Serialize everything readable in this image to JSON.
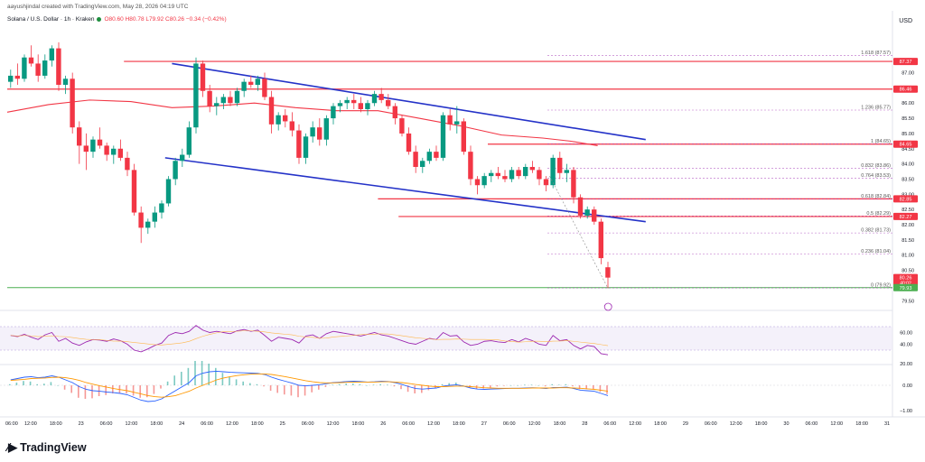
{
  "header": {
    "author_line": "aayushjindal created with TradingView.com, May 28, 2026 04:19 UTC",
    "symbol_line": "Solana / U.S. Dollar · 1h · Kraken",
    "ohlc": "O80.60 H80.78 L79.92 C80.26 −0.34 (−0.42%)",
    "currency": "USD"
  },
  "logo_text": "TradingView",
  "colors": {
    "up": "#089981",
    "down": "#f23645",
    "channel": "#2432c8",
    "ma": "#f23645",
    "fib": "#9c27b0",
    "rsi": "#9c27b0",
    "macd": "#2962ff",
    "signal": "#ff9800",
    "support": "#4caf50"
  },
  "chart_data": {
    "type": "candlestick",
    "timeframe": "1h",
    "price_axis": {
      "labels": [
        "87.00",
        "86.50",
        "86.00",
        "85.50",
        "85.00",
        "84.50",
        "84.00",
        "83.50",
        "83.00",
        "82.50",
        "82.00",
        "81.50",
        "81.00",
        "80.50",
        "79.50"
      ],
      "range": [
        79.3,
        88.5
      ]
    },
    "price_tags": [
      {
        "value": "87.37",
        "color": "#f23645"
      },
      {
        "value": "86.46",
        "color": "#f23645"
      },
      {
        "value": "84.65",
        "color": "#f23645"
      },
      {
        "value": "82.85",
        "color": "#f23645"
      },
      {
        "value": "82.27",
        "color": "#f23645"
      },
      {
        "value": "80.26",
        "sub": "40:02",
        "color": "#f23645"
      },
      {
        "value": "79.93",
        "color": "#4caf50"
      }
    ],
    "x_axis": {
      "labels": [
        "06:00",
        "12:00",
        "18:00",
        "23",
        "06:00",
        "12:00",
        "18:00",
        "24",
        "06:00",
        "12:00",
        "18:00",
        "25",
        "06:00",
        "12:00",
        "18:00",
        "26",
        "06:00",
        "12:00",
        "18:00",
        "27",
        "06:00",
        "12:00",
        "18:00",
        "28",
        "06:00",
        "12:00",
        "18:00",
        "29",
        "06:00",
        "12:00",
        "18:00",
        "30",
        "06:00",
        "12:00",
        "18:00",
        "31"
      ]
    },
    "candles": [
      [
        86.7,
        87.1,
        86.5,
        86.9
      ],
      [
        86.9,
        87.3,
        86.6,
        86.8
      ],
      [
        86.8,
        87.6,
        86.7,
        87.5
      ],
      [
        87.5,
        87.9,
        87.2,
        87.3
      ],
      [
        87.3,
        87.6,
        86.7,
        86.9
      ],
      [
        86.9,
        87.6,
        86.8,
        87.4
      ],
      [
        87.4,
        87.9,
        87.2,
        87.8
      ],
      [
        87.8,
        88.0,
        86.4,
        86.6
      ],
      [
        86.6,
        86.9,
        86.3,
        86.8
      ],
      [
        86.8,
        87.0,
        85.0,
        85.2
      ],
      [
        85.2,
        85.4,
        84.0,
        84.6
      ],
      [
        84.6,
        85.0,
        83.8,
        84.4
      ],
      [
        84.4,
        84.9,
        84.2,
        84.8
      ],
      [
        84.8,
        85.2,
        84.5,
        84.6
      ],
      [
        84.6,
        84.7,
        84.1,
        84.3
      ],
      [
        84.3,
        84.6,
        84.0,
        84.5
      ],
      [
        84.5,
        84.8,
        84.1,
        84.2
      ],
      [
        84.2,
        84.4,
        83.6,
        83.8
      ],
      [
        83.8,
        84.0,
        82.3,
        82.4
      ],
      [
        82.4,
        82.6,
        81.4,
        81.9
      ],
      [
        81.9,
        82.2,
        81.7,
        82.1
      ],
      [
        82.1,
        82.6,
        81.9,
        82.4
      ],
      [
        82.4,
        82.8,
        82.2,
        82.7
      ],
      [
        82.7,
        83.6,
        82.6,
        83.5
      ],
      [
        83.5,
        84.2,
        83.3,
        84.1
      ],
      [
        84.1,
        84.5,
        83.9,
        84.3
      ],
      [
        84.3,
        85.4,
        84.2,
        85.2
      ],
      [
        85.2,
        87.5,
        85.0,
        87.3
      ],
      [
        87.3,
        87.4,
        86.2,
        86.4
      ],
      [
        86.4,
        86.6,
        85.7,
        85.9
      ],
      [
        85.9,
        86.2,
        85.6,
        86.0
      ],
      [
        86.0,
        86.3,
        85.8,
        86.2
      ],
      [
        86.2,
        86.4,
        85.9,
        86.0
      ],
      [
        86.0,
        86.5,
        85.9,
        86.4
      ],
      [
        86.4,
        86.8,
        86.2,
        86.7
      ],
      [
        86.7,
        86.9,
        86.5,
        86.6
      ],
      [
        86.6,
        86.9,
        86.4,
        86.8
      ],
      [
        86.8,
        87.0,
        86.1,
        86.2
      ],
      [
        86.2,
        86.4,
        85.0,
        85.3
      ],
      [
        85.3,
        85.7,
        85.1,
        85.6
      ],
      [
        85.6,
        85.8,
        85.2,
        85.4
      ],
      [
        85.4,
        85.7,
        84.9,
        85.1
      ],
      [
        85.1,
        85.3,
        84.0,
        84.2
      ],
      [
        84.2,
        85.0,
        84.0,
        84.9
      ],
      [
        84.9,
        85.4,
        84.7,
        85.2
      ],
      [
        85.2,
        85.5,
        84.6,
        84.8
      ],
      [
        84.8,
        85.6,
        84.6,
        85.5
      ],
      [
        85.5,
        86.0,
        85.3,
        85.9
      ],
      [
        85.9,
        86.1,
        85.7,
        86.0
      ],
      [
        86.0,
        86.2,
        85.8,
        86.1
      ],
      [
        86.1,
        86.3,
        85.8,
        86.0
      ],
      [
        86.0,
        86.2,
        85.7,
        85.8
      ],
      [
        85.8,
        86.1,
        85.6,
        86.0
      ],
      [
        86.0,
        86.4,
        85.9,
        86.3
      ],
      [
        86.3,
        86.5,
        86.0,
        86.1
      ],
      [
        86.1,
        86.3,
        85.8,
        85.9
      ],
      [
        85.9,
        86.0,
        85.3,
        85.5
      ],
      [
        85.5,
        85.6,
        84.9,
        85.0
      ],
      [
        85.0,
        85.2,
        84.3,
        84.4
      ],
      [
        84.4,
        84.6,
        83.7,
        83.9
      ],
      [
        83.9,
        84.2,
        83.7,
        84.1
      ],
      [
        84.1,
        84.5,
        84.0,
        84.4
      ],
      [
        84.4,
        84.6,
        84.1,
        84.2
      ],
      [
        84.2,
        85.7,
        84.1,
        85.6
      ],
      [
        85.6,
        85.8,
        85.1,
        85.3
      ],
      [
        85.3,
        85.9,
        85.0,
        85.4
      ],
      [
        85.4,
        85.5,
        84.3,
        84.4
      ],
      [
        84.4,
        84.6,
        83.3,
        83.5
      ],
      [
        83.5,
        83.6,
        83.0,
        83.3
      ],
      [
        83.3,
        83.7,
        83.2,
        83.6
      ],
      [
        83.6,
        83.8,
        83.4,
        83.7
      ],
      [
        83.7,
        83.9,
        83.5,
        83.6
      ],
      [
        83.6,
        83.8,
        83.4,
        83.5
      ],
      [
        83.5,
        83.9,
        83.4,
        83.8
      ],
      [
        83.8,
        83.9,
        83.5,
        83.6
      ],
      [
        83.6,
        84.0,
        83.5,
        83.9
      ],
      [
        83.9,
        84.1,
        83.7,
        83.8
      ],
      [
        83.8,
        83.9,
        83.3,
        83.5
      ],
      [
        83.5,
        83.6,
        83.1,
        83.3
      ],
      [
        83.3,
        84.3,
        83.2,
        84.2
      ],
      [
        84.2,
        84.4,
        83.5,
        83.7
      ],
      [
        83.7,
        84.0,
        83.4,
        83.8
      ],
      [
        83.8,
        83.9,
        82.7,
        82.9
      ],
      [
        82.9,
        83.0,
        82.2,
        82.3
      ],
      [
        82.3,
        82.6,
        82.2,
        82.5
      ],
      [
        82.5,
        82.6,
        82.0,
        82.1
      ],
      [
        82.1,
        82.2,
        80.7,
        80.9
      ],
      [
        80.6,
        80.78,
        79.92,
        80.26
      ]
    ],
    "moving_average": [
      [
        0,
        85.7
      ],
      [
        6,
        85.95
      ],
      [
        12,
        86.1
      ],
      [
        18,
        86.05
      ],
      [
        24,
        85.85
      ],
      [
        30,
        85.9
      ],
      [
        36,
        86.0
      ],
      [
        42,
        85.85
      ],
      [
        48,
        85.75
      ],
      [
        54,
        85.75
      ],
      [
        60,
        85.5
      ],
      [
        66,
        85.25
      ],
      [
        72,
        84.95
      ],
      [
        78,
        84.85
      ],
      [
        82,
        84.75
      ],
      [
        86,
        84.6
      ]
    ],
    "channel_upper": {
      "from": [
        24,
        87.3
      ],
      "to": [
        93,
        84.8
      ]
    },
    "channel_lower": {
      "from": [
        23,
        84.2
      ],
      "to": [
        93,
        82.1
      ]
    },
    "horizontal_levels": [
      {
        "value": 87.37,
        "from_bar": 17
      },
      {
        "value": 86.46,
        "from_bar": 0
      },
      {
        "value": 84.65,
        "from_bar": 70
      },
      {
        "value": 82.85,
        "from_bar": 54
      },
      {
        "value": 82.27,
        "from_bar": 57
      },
      {
        "value": 79.93,
        "from_bar": 0,
        "color": "#4caf50"
      }
    ],
    "fib_levels": [
      {
        "ratio": "1.618",
        "value": 87.57,
        "label": "1.618 (87.57)"
      },
      {
        "ratio": "1.236",
        "value": 85.77,
        "label": "1.236 (85.77)"
      },
      {
        "ratio": "1",
        "value": 84.65,
        "label": "1 (84.65)"
      },
      {
        "ratio": "0.832",
        "value": 83.86,
        "label": "0.832 (83.86)"
      },
      {
        "ratio": "0.764",
        "value": 83.53,
        "label": "0.764 (83.53)"
      },
      {
        "ratio": "0.618",
        "value": 82.84,
        "label": "0.618 (82.84)"
      },
      {
        "ratio": "0.5",
        "value": 82.29,
        "label": "0.5 (82.29)"
      },
      {
        "ratio": "0.382",
        "value": 81.73,
        "label": "0.382 (81.73)"
      },
      {
        "ratio": "0.236",
        "value": 81.04,
        "label": "0.236 (81.04)"
      },
      {
        "ratio": "0",
        "value": 79.92,
        "label": "0 (79.92)"
      }
    ],
    "rsi": {
      "axis_labels": [
        "60.00",
        "40.00"
      ],
      "values": [
        55,
        53,
        57,
        52,
        48,
        56,
        60,
        45,
        50,
        42,
        38,
        44,
        48,
        47,
        45,
        49,
        46,
        40,
        30,
        27,
        32,
        38,
        42,
        55,
        60,
        58,
        62,
        72,
        64,
        60,
        62,
        60,
        58,
        63,
        65,
        62,
        64,
        55,
        45,
        52,
        50,
        48,
        42,
        54,
        56,
        50,
        58,
        62,
        60,
        58,
        56,
        54,
        57,
        60,
        56,
        54,
        50,
        46,
        42,
        40,
        45,
        50,
        48,
        60,
        54,
        55,
        44,
        38,
        40,
        45,
        46,
        44,
        43,
        48,
        44,
        50,
        46,
        40,
        38,
        55,
        46,
        48,
        38,
        32,
        38,
        36,
        24,
        22
      ]
    },
    "macd": {
      "axis_labels": [
        "20.00",
        "0.00",
        "−1.00"
      ],
      "macd": [
        0.2,
        0.25,
        0.3,
        0.32,
        0.28,
        0.3,
        0.35,
        0.3,
        0.2,
        0.1,
        -0.05,
        -0.15,
        -0.2,
        -0.22,
        -0.25,
        -0.27,
        -0.3,
        -0.35,
        -0.45,
        -0.55,
        -0.6,
        -0.58,
        -0.5,
        -0.35,
        -0.2,
        -0.05,
        0.1,
        0.35,
        0.45,
        0.5,
        0.52,
        0.5,
        0.48,
        0.47,
        0.46,
        0.45,
        0.44,
        0.4,
        0.3,
        0.22,
        0.15,
        0.08,
        0.0,
        -0.02,
        0.0,
        0.02,
        0.06,
        0.1,
        0.12,
        0.14,
        0.15,
        0.14,
        0.12,
        0.13,
        0.15,
        0.14,
        0.1,
        0.03,
        -0.05,
        -0.12,
        -0.14,
        -0.12,
        -0.1,
        -0.03,
        0.0,
        0.02,
        -0.03,
        -0.1,
        -0.14,
        -0.15,
        -0.14,
        -0.13,
        -0.12,
        -0.11,
        -0.11,
        -0.1,
        -0.09,
        -0.1,
        -0.12,
        -0.08,
        -0.08,
        -0.07,
        -0.12,
        -0.18,
        -0.2,
        -0.22,
        -0.3,
        -0.38
      ],
      "signal": [
        0.18,
        0.2,
        0.22,
        0.25,
        0.26,
        0.27,
        0.29,
        0.3,
        0.28,
        0.24,
        0.18,
        0.1,
        0.04,
        -0.02,
        -0.07,
        -0.12,
        -0.16,
        -0.2,
        -0.26,
        -0.32,
        -0.38,
        -0.42,
        -0.44,
        -0.42,
        -0.38,
        -0.3,
        -0.22,
        -0.1,
        0.0,
        0.1,
        0.2,
        0.27,
        0.32,
        0.36,
        0.39,
        0.41,
        0.42,
        0.42,
        0.4,
        0.36,
        0.32,
        0.27,
        0.22,
        0.17,
        0.13,
        0.1,
        0.09,
        0.09,
        0.1,
        0.11,
        0.12,
        0.12,
        0.12,
        0.12,
        0.13,
        0.13,
        0.12,
        0.1,
        0.07,
        0.03,
        0.0,
        -0.03,
        -0.05,
        -0.05,
        -0.04,
        -0.03,
        -0.03,
        -0.05,
        -0.07,
        -0.09,
        -0.1,
        -0.11,
        -0.11,
        -0.11,
        -0.11,
        -0.11,
        -0.1,
        -0.1,
        -0.1,
        -0.1,
        -0.09,
        -0.09,
        -0.1,
        -0.11,
        -0.13,
        -0.15,
        -0.18,
        -0.22
      ]
    }
  }
}
